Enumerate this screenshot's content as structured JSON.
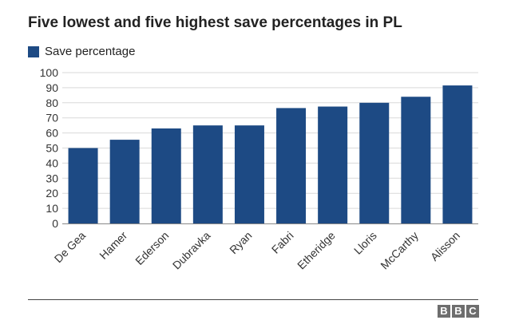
{
  "chart_data": {
    "type": "bar",
    "title": "Five lowest and five highest save percentages in PL",
    "legend": [
      {
        "label": "Save percentage",
        "color": "#1d4a84"
      }
    ],
    "legend_position": "top-left",
    "categories": [
      "De Gea",
      "Hamer",
      "Ederson",
      "Dubravka",
      "Ryan",
      "Fabri",
      "Etheridge",
      "Lloris",
      "McCarthy",
      "Alisson"
    ],
    "series": [
      {
        "name": "Save percentage",
        "values": [
          50,
          55.5,
          63,
          65,
          65,
          76.5,
          77.5,
          80,
          84,
          91.5
        ]
      }
    ],
    "ylim": [
      0,
      100
    ],
    "yticks": [
      0,
      10,
      20,
      30,
      40,
      50,
      60,
      70,
      80,
      90,
      100
    ],
    "xlabel": "",
    "ylabel": "",
    "grid": true,
    "bar_color": "#1d4a84"
  },
  "footer": {
    "logo": [
      "B",
      "B",
      "C"
    ]
  }
}
